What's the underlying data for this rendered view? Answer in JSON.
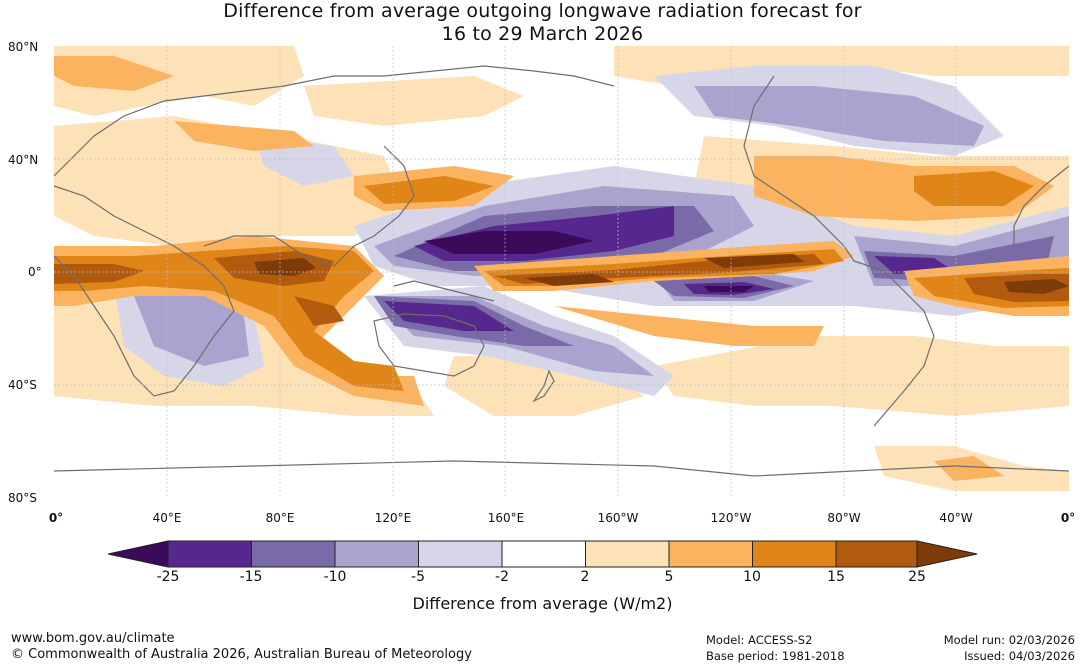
{
  "title": {
    "line1": "Difference from average outgoing longwave radiation forecast for",
    "line2": "16 to 29 March 2026"
  },
  "latitude_labels": [
    "80°N",
    "40°N",
    "0°",
    "40°S",
    "80°S"
  ],
  "longitude_labels": [
    "0°",
    "40°E",
    "80°E",
    "120°E",
    "160°E",
    "160°W",
    "120°W",
    "80°W",
    "40°W",
    "0°"
  ],
  "colorbar": {
    "title": "Difference from average (W/m2)",
    "tick_labels": [
      "-25",
      "-15",
      "-10",
      "-5",
      "-2",
      "2",
      "5",
      "10",
      "15",
      "25"
    ],
    "colors": [
      "#3b0a5a",
      "#56288e",
      "#7b6aa8",
      "#aaa3ce",
      "#d7d6e9",
      "#ffffff",
      "#fde2b8",
      "#fbb35f",
      "#e08518",
      "#b25a0e",
      "#7f3b08"
    ]
  },
  "footer": {
    "website": "www.bom.gov.au/climate",
    "copyright": "© Commonwealth of Australia 2026, Australian Bureau of Meteorology",
    "model": "Model: ACCESS-S2",
    "base_period": "Base period: 1981-2018",
    "model_run": "Model run: 02/03/2026",
    "issued": "Issued: 04/03/2026"
  }
}
